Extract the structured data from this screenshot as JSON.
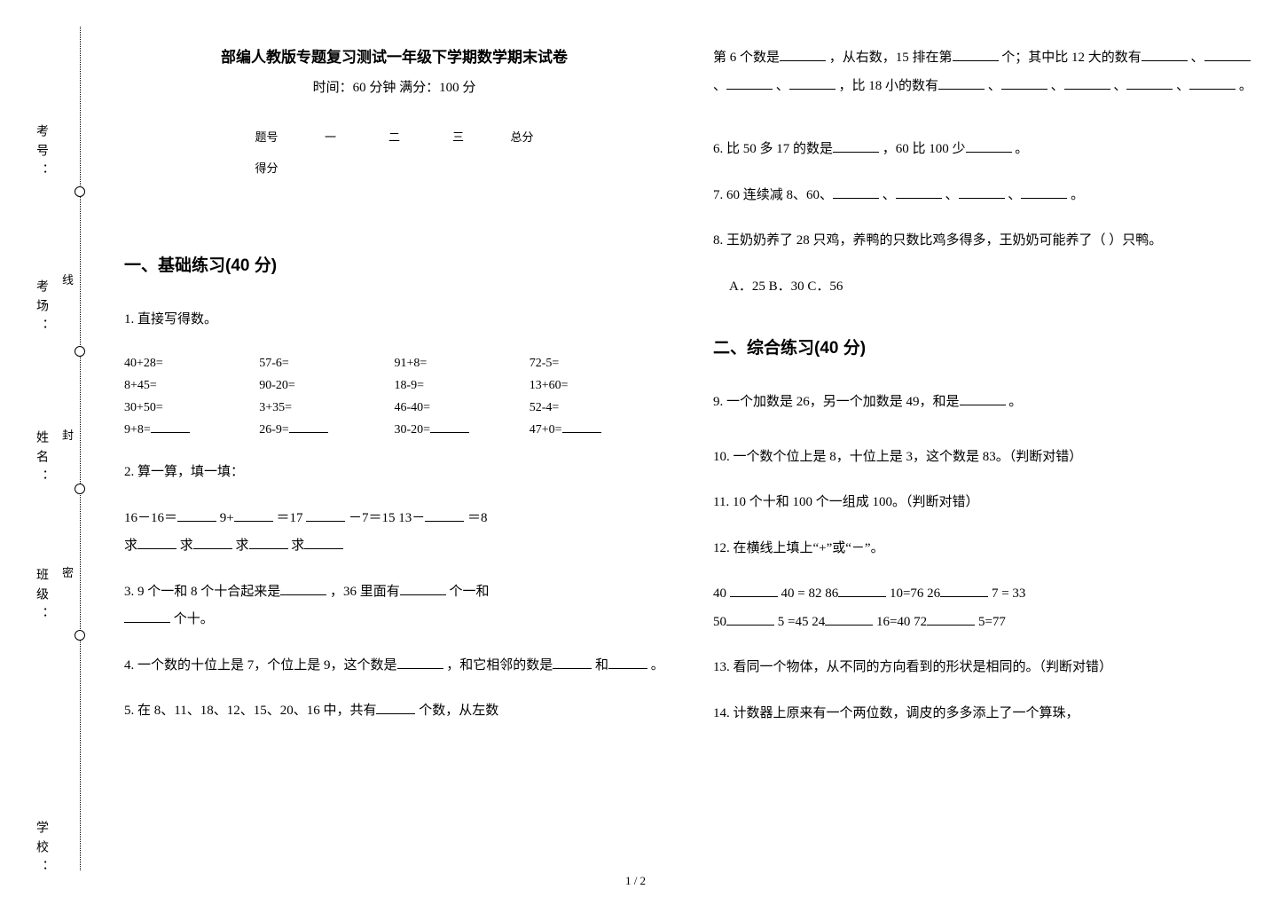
{
  "binding": {
    "labels": [
      "考号：",
      "考场：",
      "姓名：",
      "班级：",
      "学校："
    ],
    "seal_chars": [
      "线",
      "封",
      "密"
    ],
    "circle_tops": [
      210,
      390,
      545,
      710
    ],
    "label_tops": [
      140,
      315,
      485,
      640,
      925
    ],
    "seal_tops": [
      305,
      480,
      635
    ]
  },
  "header": {
    "title": "部编人教版专题复习测试一年级下学期数学期末试卷",
    "subtitle": "时间：60 分钟   满分：100 分"
  },
  "score_table": {
    "headers": [
      "题号",
      "一",
      "二",
      "三",
      "总分"
    ],
    "row2_label": "得分"
  },
  "sections": {
    "s1": "一、基础练习(40 分)",
    "s2": "二、综合练习(40 分)"
  },
  "q1": {
    "stem": "1.  直接写得数。",
    "cells": [
      "40+28=",
      "57-6=",
      "91+8=",
      "72-5=",
      "8+45=",
      "90-20=",
      "18-9=",
      "13+60=",
      "30+50=",
      "3+35=",
      "46-40=",
      "52-4=",
      "9+8=",
      "26-9=",
      "30-20=",
      "47+0="
    ]
  },
  "q2": {
    "stem": "2.  算一算，填一填：",
    "line1_a": "16－16＝",
    "line1_b": "  9+",
    "line1_c": "＝17  ",
    "line1_d": "－7＝15  13－",
    "line1_e": "＝8",
    "line2_a": "求",
    "line2_b": "  求",
    "line2_c": "  求",
    "line2_d": "  求"
  },
  "q3": {
    "a": "3.  9 个一和 8 个十合起来是",
    "b": "，36 里面有",
    "c": "个一和",
    "d": "个十。"
  },
  "q4": {
    "a": "4.  一个数的十位上是 7，个位上是 9，这个数是",
    "b": "，和它相邻的数是",
    "c": "和",
    "d": "。"
  },
  "q5": {
    "a": "5.  在 8、11、18、12、15、20、16 中，共有",
    "b": "个数，从左数"
  },
  "q5cont": {
    "a": "第 6 个数是",
    "b": "，从右数，15 排在第",
    "c": "个；其中比 12 大的数有",
    "d": "、",
    "e": "、",
    "f": "、",
    "g": "，比 18 小的数有",
    "h": "、",
    "i": "、",
    "j": "、",
    "k": "、",
    "l": "。"
  },
  "q6": {
    "a": "6.  比 50 多 17 的数是",
    "b": "，60 比 100 少",
    "c": "。"
  },
  "q7": {
    "a": "7.  60 连续减 8、60、",
    "b": "、",
    "c": "、",
    "d": "、",
    "e": "。"
  },
  "q8": {
    "a": "8.  王奶奶养了 28 只鸡，养鸭的只数比鸡多得多，王奶奶可能养了（        ）只鸭。",
    "choices": "A．25   B．30   C．56"
  },
  "q9": {
    "a": "9.  一个加数是 26，另一个加数是 49，和是",
    "b": "。"
  },
  "q10": "10.  一个数个位上是 8，十位上是 3，这个数是 83。（判断对错）",
  "q11": "11.  10 个十和 100 个一组成 100。（判断对错）",
  "q12": {
    "stem": "12.  在横线上填上“+”或“－”。",
    "l1a": "40 ",
    "l1b": "40 = 82  86",
    "l1c": "10=76  26",
    "l1d": "7  =  33",
    "l2a": "50",
    "l2b": "5  =45  24",
    "l2c": "16=40  72",
    "l2d": "   5=77"
  },
  "q13": "13.  看同一个物体，从不同的方向看到的形状是相同的。（判断对错）",
  "q14": "14.  计数器上原来有一个两位数，调皮的多多添上了一个算珠，",
  "pagenum": "1 / 2"
}
